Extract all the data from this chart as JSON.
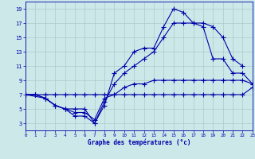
{
  "xlabel": "Graphe des températures (°c)",
  "bg_color": "#cce8e8",
  "grid_color": "#aacccc",
  "line_color": "#0000aa",
  "xlim": [
    0,
    23
  ],
  "ylim": [
    2,
    20
  ],
  "xticks": [
    0,
    1,
    2,
    3,
    4,
    5,
    6,
    7,
    8,
    9,
    10,
    11,
    12,
    13,
    14,
    15,
    16,
    17,
    18,
    19,
    20,
    21,
    22,
    23
  ],
  "yticks": [
    3,
    5,
    7,
    9,
    11,
    13,
    15,
    17,
    19
  ],
  "series": [
    {
      "x": [
        0,
        1,
        2,
        3,
        4,
        5,
        6,
        7,
        8,
        9,
        10,
        11,
        12,
        13,
        14,
        15,
        16,
        17,
        18,
        19,
        20,
        21,
        22,
        23
      ],
      "y": [
        7,
        7,
        7,
        7,
        7,
        7,
        7,
        7,
        7,
        7,
        7,
        7,
        7,
        7,
        7,
        7,
        7,
        7,
        7,
        7,
        7,
        7,
        7,
        8
      ]
    },
    {
      "x": [
        0,
        1,
        2,
        3,
        4,
        5,
        6,
        7,
        8,
        9,
        10,
        11,
        12,
        13,
        14,
        15,
        16,
        17,
        18,
        19,
        20,
        21,
        22,
        23
      ],
      "y": [
        7,
        7,
        6.5,
        5.5,
        5,
        4.5,
        4.5,
        3.5,
        6.5,
        7,
        8,
        8.5,
        8.5,
        9,
        9,
        9,
        9,
        9,
        9,
        9,
        9,
        9,
        9,
        8.5
      ]
    },
    {
      "x": [
        0,
        1,
        2,
        3,
        4,
        5,
        6,
        7,
        8,
        9,
        10,
        11,
        12,
        13,
        14,
        15,
        16,
        17,
        18,
        19,
        20,
        21,
        22,
        23
      ],
      "y": [
        7,
        7,
        6.5,
        5.5,
        5,
        4,
        4,
        3,
        6,
        8.5,
        10,
        11,
        12,
        13,
        15,
        17,
        17,
        17,
        16.5,
        12,
        12,
        10,
        10,
        8.5
      ]
    },
    {
      "x": [
        0,
        2,
        3,
        4,
        5,
        6,
        7,
        8,
        9,
        10,
        11,
        12,
        13,
        14,
        15,
        16,
        17,
        18,
        19,
        20,
        21,
        22
      ],
      "y": [
        7,
        6.5,
        5.5,
        5,
        5,
        5,
        3,
        5.5,
        10,
        11,
        13,
        13.5,
        13.5,
        16.5,
        19,
        18.5,
        17,
        17,
        16.5,
        15,
        12,
        11
      ]
    }
  ]
}
